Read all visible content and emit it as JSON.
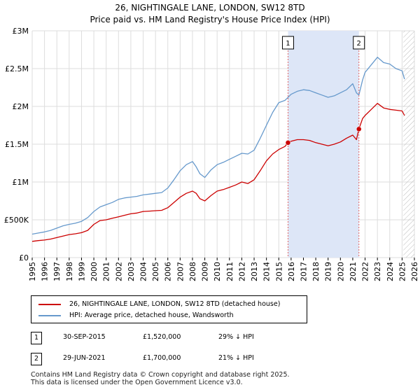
{
  "title": {
    "line1": "26, NIGHTINGALE LANE, LONDON, SW12 8TD",
    "line2": "Price paid vs. HM Land Registry's House Price Index (HPI)"
  },
  "legend": {
    "property_label": "26, NIGHTINGALE LANE, LONDON, SW12 8TD (detached house)",
    "hpi_label": "HPI: Average price, detached house, Wandsworth"
  },
  "colors": {
    "property": "#cc0000",
    "hpi": "#6699cc",
    "shade": "#dde6f7",
    "grid": "#dddddd",
    "marker_dash": "#e06666"
  },
  "sales": [
    {
      "num": "1",
      "date": "30-SEP-2015",
      "price": "£1,520,000",
      "hpi_diff": "29% ↓ HPI"
    },
    {
      "num": "2",
      "date": "29-JUN-2021",
      "price": "£1,700,000",
      "hpi_diff": "21% ↓ HPI"
    }
  ],
  "footer": {
    "line1": "Contains HM Land Registry data © Crown copyright and database right 2025.",
    "line2": "This data is licensed under the Open Government Licence v3.0."
  },
  "chart_data": {
    "type": "line",
    "title": "26, NIGHTINGALE LANE, LONDON, SW12 8TD — Price paid vs. HM Land Registry's House Price Index (HPI)",
    "xlabel": "",
    "ylabel": "",
    "xlim": [
      1995,
      2026
    ],
    "ylim": [
      0,
      3000000
    ],
    "y_ticks": [
      {
        "value": 0,
        "label": "£0"
      },
      {
        "value": 500000,
        "label": "£500K"
      },
      {
        "value": 1000000,
        "label": "£1M"
      },
      {
        "value": 1500000,
        "label": "£1.5M"
      },
      {
        "value": 2000000,
        "label": "£2M"
      },
      {
        "value": 2500000,
        "label": "£2.5M"
      },
      {
        "value": 3000000,
        "label": "£3M"
      }
    ],
    "x_ticks": [
      "1995",
      "1996",
      "1997",
      "1998",
      "1999",
      "2000",
      "2001",
      "2002",
      "2003",
      "2004",
      "2005",
      "2006",
      "2007",
      "2008",
      "2009",
      "2010",
      "2011",
      "2012",
      "2013",
      "2014",
      "2015",
      "2016",
      "2017",
      "2018",
      "2019",
      "2020",
      "2021",
      "2022",
      "2023",
      "2024",
      "2025",
      "2026"
    ],
    "grid": true,
    "shaded_region": [
      2015.75,
      2021.5
    ],
    "future_hatch_start": 2025.1,
    "series": [
      {
        "name": "26, NIGHTINGALE LANE, LONDON, SW12 8TD (detached house)",
        "color": "#cc0000",
        "x": [
          1995.0,
          1995.5,
          1996.0,
          1996.5,
          1997.0,
          1997.5,
          1998.0,
          1998.5,
          1999.0,
          1999.5,
          2000.0,
          2000.5,
          2001.0,
          2001.5,
          2002.0,
          2002.5,
          2003.0,
          2003.5,
          2004.0,
          2004.5,
          2005.0,
          2005.5,
          2006.0,
          2006.5,
          2007.0,
          2007.5,
          2008.0,
          2008.3,
          2008.6,
          2009.0,
          2009.5,
          2010.0,
          2010.5,
          2011.0,
          2011.5,
          2012.0,
          2012.5,
          2013.0,
          2013.5,
          2014.0,
          2014.5,
          2015.0,
          2015.5,
          2015.75,
          2016.0,
          2016.5,
          2017.0,
          2017.5,
          2018.0,
          2018.5,
          2019.0,
          2019.5,
          2020.0,
          2020.5,
          2021.0,
          2021.3,
          2021.5,
          2021.8,
          2022.0,
          2022.5,
          2023.0,
          2023.5,
          2024.0,
          2024.5,
          2025.0,
          2025.2
        ],
        "values": [
          215000,
          225000,
          232000,
          245000,
          265000,
          285000,
          305000,
          315000,
          330000,
          360000,
          440000,
          490000,
          500000,
          520000,
          540000,
          560000,
          580000,
          590000,
          610000,
          615000,
          620000,
          625000,
          660000,
          730000,
          800000,
          850000,
          880000,
          850000,
          780000,
          750000,
          820000,
          880000,
          900000,
          930000,
          960000,
          1000000,
          980000,
          1030000,
          1150000,
          1280000,
          1370000,
          1430000,
          1470000,
          1520000,
          1540000,
          1560000,
          1560000,
          1550000,
          1520000,
          1500000,
          1480000,
          1500000,
          1530000,
          1580000,
          1620000,
          1560000,
          1700000,
          1840000,
          1880000,
          1960000,
          2040000,
          1980000,
          1960000,
          1950000,
          1940000,
          1880000
        ]
      },
      {
        "name": "HPI: Average price, detached house, Wandsworth",
        "color": "#6699cc",
        "x": [
          1995.0,
          1995.5,
          1996.0,
          1996.5,
          1997.0,
          1997.5,
          1998.0,
          1998.5,
          1999.0,
          1999.5,
          2000.0,
          2000.5,
          2001.0,
          2001.5,
          2002.0,
          2002.5,
          2003.0,
          2003.5,
          2004.0,
          2004.5,
          2005.0,
          2005.5,
          2006.0,
          2006.5,
          2007.0,
          2007.5,
          2008.0,
          2008.3,
          2008.6,
          2009.0,
          2009.5,
          2010.0,
          2010.5,
          2011.0,
          2011.5,
          2012.0,
          2012.5,
          2013.0,
          2013.5,
          2014.0,
          2014.5,
          2015.0,
          2015.5,
          2016.0,
          2016.5,
          2017.0,
          2017.5,
          2018.0,
          2018.5,
          2019.0,
          2019.5,
          2020.0,
          2020.5,
          2021.0,
          2021.3,
          2021.5,
          2021.8,
          2022.0,
          2022.5,
          2023.0,
          2023.5,
          2024.0,
          2024.5,
          2025.0,
          2025.2
        ],
        "values": [
          310000,
          325000,
          340000,
          360000,
          390000,
          420000,
          440000,
          455000,
          480000,
          530000,
          610000,
          670000,
          700000,
          730000,
          770000,
          790000,
          800000,
          810000,
          830000,
          840000,
          850000,
          860000,
          920000,
          1030000,
          1150000,
          1230000,
          1270000,
          1200000,
          1110000,
          1060000,
          1160000,
          1230000,
          1260000,
          1300000,
          1340000,
          1380000,
          1370000,
          1420000,
          1580000,
          1750000,
          1920000,
          2050000,
          2080000,
          2160000,
          2200000,
          2220000,
          2210000,
          2180000,
          2150000,
          2120000,
          2140000,
          2180000,
          2220000,
          2300000,
          2180000,
          2150000,
          2350000,
          2450000,
          2550000,
          2650000,
          2580000,
          2560000,
          2500000,
          2470000,
          2360000
        ]
      }
    ],
    "annotations": [
      {
        "label": "1",
        "x": 2015.75,
        "value": 1520000
      },
      {
        "label": "2",
        "x": 2021.5,
        "value": 1700000
      }
    ]
  }
}
